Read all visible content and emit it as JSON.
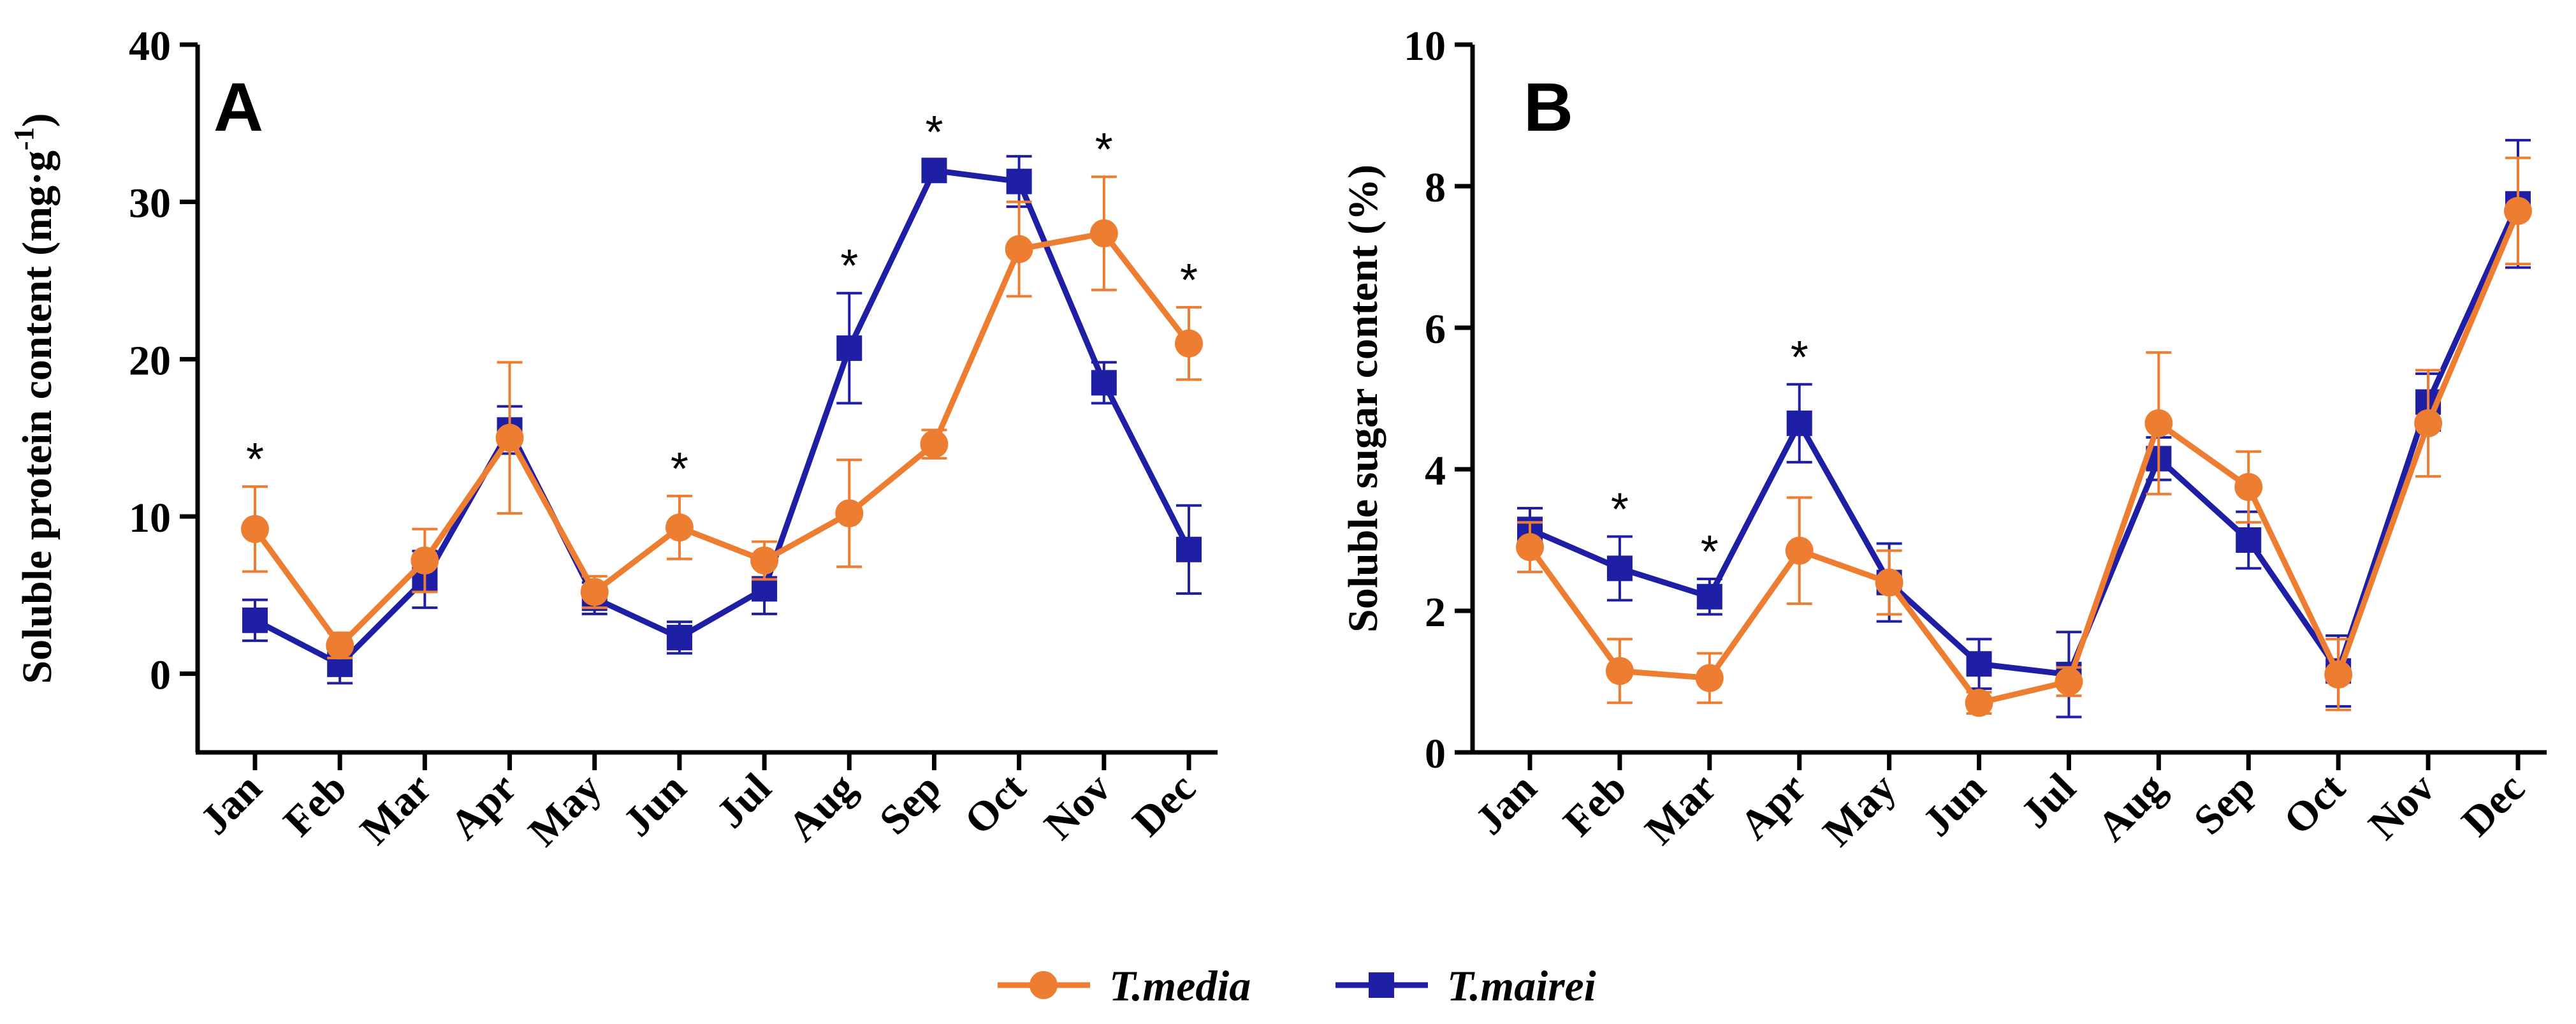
{
  "colors": {
    "media": "#ED7D31",
    "mairei": "#1F1FA6",
    "axis": "#000000"
  },
  "legend": [
    {
      "name": "T.media",
      "marker": "circle",
      "color": "#ED7D31"
    },
    {
      "name": "T.mairei",
      "marker": "square",
      "color": "#1F1FA6"
    }
  ],
  "chart_data": [
    {
      "type": "line",
      "panel_label": "A",
      "ylabel": "Soluble protein content (mg·g",
      "ylabel_sup": "-1",
      "ylabel_close": ")",
      "ylim": [
        -5,
        40
      ],
      "yticks": [
        0,
        10,
        20,
        30,
        40
      ],
      "categories": [
        "Jan",
        "Feb",
        "Mar",
        "Apr",
        "May",
        "Jun",
        "Jul",
        "Aug",
        "Sep",
        "Oct",
        "Nov",
        "Dec"
      ],
      "series": [
        {
          "name": "T.media",
          "marker": "circle",
          "color": "#ED7D31",
          "values": [
            9.2,
            1.8,
            7.2,
            15.0,
            5.2,
            9.3,
            7.2,
            10.2,
            14.6,
            27.0,
            28.0,
            21.0
          ],
          "errors": [
            2.7,
            0.8,
            2.0,
            4.8,
            1.0,
            2.0,
            1.2,
            3.4,
            0.9,
            3.0,
            3.6,
            2.3
          ]
        },
        {
          "name": "T.mairei",
          "marker": "square",
          "color": "#1F1FA6",
          "values": [
            3.4,
            0.6,
            6.0,
            15.5,
            4.8,
            2.3,
            5.4,
            20.7,
            32.0,
            31.3,
            18.5,
            7.9
          ],
          "errors": [
            1.3,
            1.2,
            1.8,
            1.5,
            1.0,
            1.0,
            1.6,
            3.5,
            0.7,
            1.6,
            1.3,
            2.8
          ]
        }
      ],
      "significance": [
        "*",
        "",
        "",
        "",
        "",
        "*",
        "",
        "*",
        "*",
        "",
        "*",
        "*"
      ]
    },
    {
      "type": "line",
      "panel_label": "B",
      "ylabel": "Soluble sugar content (%)",
      "ylim": [
        0,
        10
      ],
      "yticks": [
        0,
        2,
        4,
        6,
        8,
        10
      ],
      "categories": [
        "Jan",
        "Feb",
        "Mar",
        "Apr",
        "May",
        "Jun",
        "Jul",
        "Aug",
        "Sep",
        "Oct",
        "Nov",
        "Dec"
      ],
      "series": [
        {
          "name": "T.media",
          "marker": "circle",
          "color": "#ED7D31",
          "values": [
            2.9,
            1.15,
            1.05,
            2.85,
            2.4,
            0.7,
            1.0,
            4.65,
            3.75,
            1.1,
            4.65,
            7.65
          ],
          "errors": [
            0.35,
            0.45,
            0.35,
            0.75,
            0.45,
            0.15,
            0.2,
            1.0,
            0.5,
            0.5,
            0.75,
            0.75
          ]
        },
        {
          "name": "T.mairei",
          "marker": "square",
          "color": "#1F1FA6",
          "values": [
            3.15,
            2.6,
            2.2,
            4.65,
            2.4,
            1.25,
            1.1,
            4.15,
            3.0,
            1.15,
            4.95,
            7.75
          ],
          "errors": [
            0.3,
            0.45,
            0.25,
            0.55,
            0.55,
            0.35,
            0.6,
            0.3,
            0.4,
            0.5,
            0.4,
            0.9
          ]
        }
      ],
      "significance": [
        "",
        "*",
        "*",
        "*",
        "",
        "",
        "",
        "",
        "",
        "",
        "",
        ""
      ]
    }
  ]
}
